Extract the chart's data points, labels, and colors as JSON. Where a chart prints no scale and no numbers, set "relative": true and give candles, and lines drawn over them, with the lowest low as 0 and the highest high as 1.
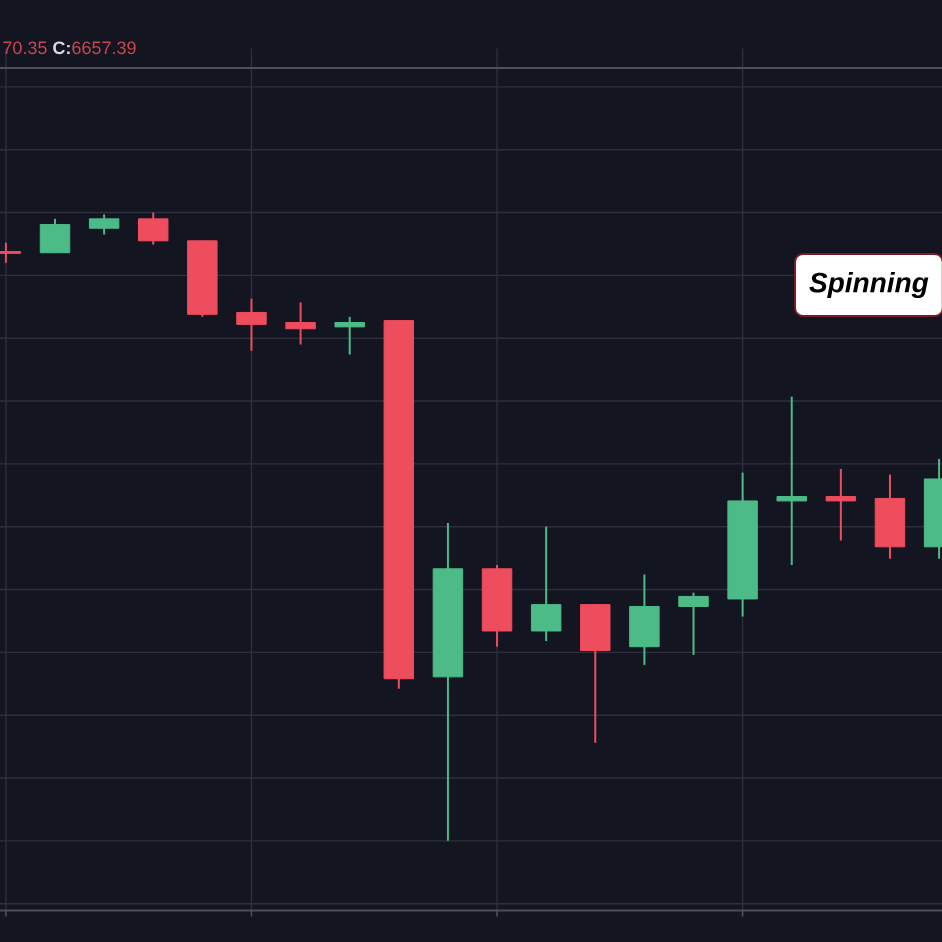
{
  "chart_data": {
    "type": "candlestick",
    "relative": true,
    "categories": [
      null,
      null,
      null,
      null,
      null,
      null,
      null,
      null,
      null,
      null,
      null,
      null,
      null,
      null,
      null,
      null,
      null,
      null,
      null,
      null
    ],
    "ohlc": [
      [
        0.938,
        0.952,
        0.92,
        0.935
      ],
      [
        0.936,
        0.99,
        0.936,
        0.981
      ],
      [
        0.975,
        0.997,
        0.965,
        0.99
      ],
      [
        0.99,
        1.0,
        0.949,
        0.955
      ],
      [
        0.955,
        0.955,
        0.834,
        0.838
      ],
      [
        0.841,
        0.863,
        0.78,
        0.822
      ],
      [
        0.825,
        0.857,
        0.79,
        0.815
      ],
      [
        0.818,
        0.834,
        0.774,
        0.825
      ],
      [
        0.828,
        0.828,
        0.242,
        0.258
      ],
      [
        0.261,
        0.506,
        0.0,
        0.433
      ],
      [
        0.433,
        0.439,
        0.309,
        0.334
      ],
      [
        0.334,
        0.5,
        0.318,
        0.376
      ],
      [
        0.376,
        0.376,
        0.156,
        0.303
      ],
      [
        0.309,
        0.424,
        0.28,
        0.373
      ],
      [
        0.373,
        0.395,
        0.296,
        0.389
      ],
      [
        0.385,
        0.586,
        0.357,
        0.541
      ],
      [
        0.541,
        0.707,
        0.439,
        0.548
      ],
      [
        0.548,
        0.592,
        0.478,
        0.541
      ],
      [
        0.545,
        0.583,
        0.449,
        0.468
      ],
      [
        0.468,
        0.608,
        0.449,
        0.576
      ]
    ],
    "colors": [
      "#ee4d5e",
      "#4cbb87",
      "#4cbb87",
      "#ee4d5e",
      "#ee4d5e",
      "#ee4d5e",
      "#ee4d5e",
      "#4cbb87",
      "#ee4d5e",
      "#4cbb87",
      "#ee4d5e",
      "#4cbb87",
      "#ee4d5e",
      "#4cbb87",
      "#4cbb87",
      "#4cbb87",
      "#4cbb87",
      "#ee4d5e",
      "#ee4d5e",
      "#4cbb87"
    ],
    "grid": true,
    "annotations": [
      "70.35 **C:**6657.39",
      "Spinning"
    ]
  }
}
